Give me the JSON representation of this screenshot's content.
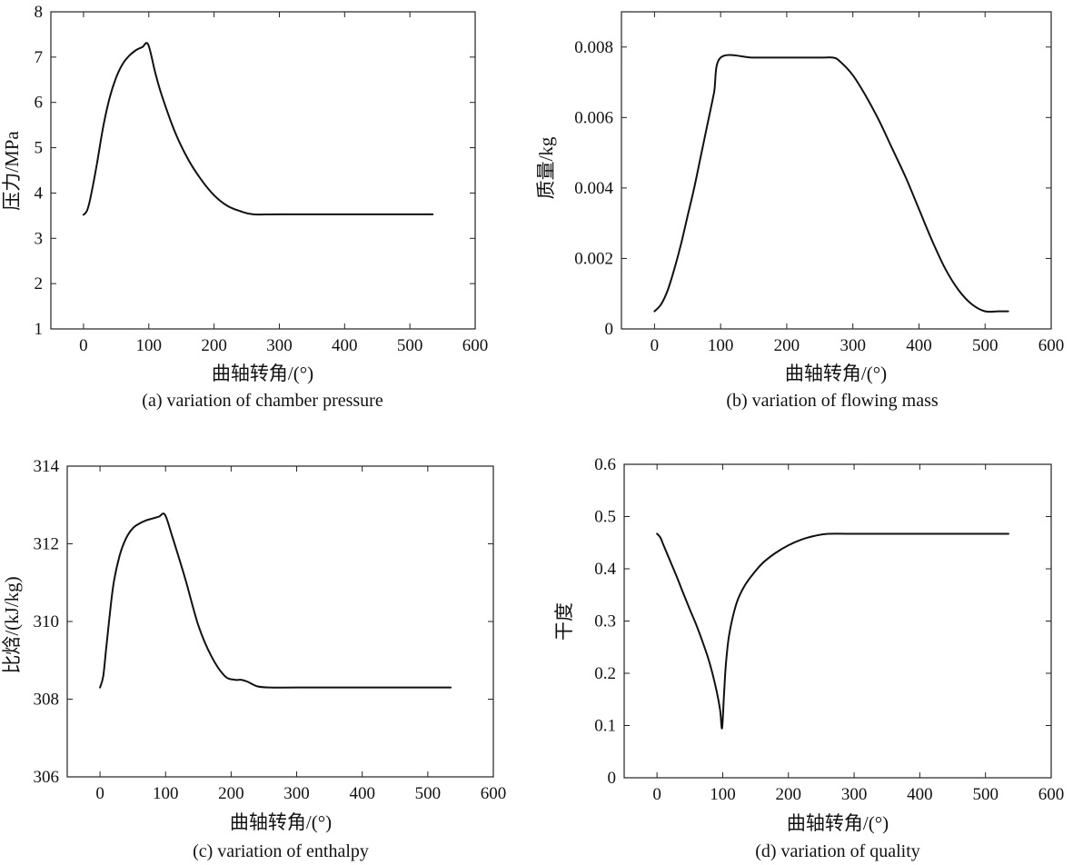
{
  "chart_data": [
    {
      "id": "a",
      "type": "line",
      "title": "",
      "caption": "(a) variation of chamber pressure",
      "xlabel": "曲轴转角/(°)",
      "ylabel": "压力/MPa",
      "xlim": [
        -50,
        600
      ],
      "ylim": [
        1,
        8
      ],
      "xticks": [
        "0",
        "100",
        "200",
        "300",
        "400",
        "500",
        "600"
      ],
      "xtick_values": [
        0,
        100,
        200,
        300,
        400,
        500,
        600
      ],
      "yticks": [
        "1",
        "2",
        "3",
        "4",
        "5",
        "6",
        "7",
        "8"
      ],
      "ytick_values": [
        1,
        2,
        3,
        4,
        5,
        6,
        7,
        8
      ],
      "series": [
        {
          "name": "pressure",
          "x": [
            0,
            5,
            10,
            20,
            30,
            40,
            50,
            60,
            70,
            80,
            90,
            99,
            110,
            120,
            140,
            160,
            180,
            200,
            220,
            240,
            260,
            300,
            400,
            500,
            535
          ],
          "y": [
            3.52,
            3.6,
            3.85,
            4.6,
            5.45,
            6.1,
            6.55,
            6.85,
            7.03,
            7.15,
            7.22,
            7.28,
            6.65,
            6.15,
            5.35,
            4.75,
            4.3,
            3.95,
            3.72,
            3.6,
            3.53,
            3.53,
            3.53,
            3.53,
            3.53
          ]
        }
      ]
    },
    {
      "id": "b",
      "type": "line",
      "title": "",
      "caption": "(b) variation of flowing mass",
      "xlabel": "曲轴转角/(°)",
      "ylabel": "质量/kg",
      "xlim": [
        -50,
        600
      ],
      "ylim": [
        0,
        0.009
      ],
      "xticks": [
        "0",
        "100",
        "200",
        "300",
        "400",
        "500",
        "600"
      ],
      "xtick_values": [
        0,
        100,
        200,
        300,
        400,
        500,
        600
      ],
      "yticks": [
        "0",
        "0.002",
        "0.004",
        "0.006",
        "0.008"
      ],
      "ytick_values": [
        0,
        0.002,
        0.004,
        0.006,
        0.008
      ],
      "series": [
        {
          "name": "mass",
          "x": [
            0,
            10,
            20,
            30,
            40,
            50,
            60,
            70,
            80,
            90,
            100,
            150,
            200,
            250,
            270,
            280,
            300,
            320,
            340,
            360,
            380,
            400,
            420,
            440,
            460,
            480,
            500,
            520,
            535
          ],
          "y": [
            0.0005,
            0.0007,
            0.0011,
            0.0017,
            0.0024,
            0.0032,
            0.004,
            0.0049,
            0.0058,
            0.0067,
            0.0077,
            0.0077,
            0.0077,
            0.0077,
            0.0077,
            0.0076,
            0.0072,
            0.0066,
            0.0059,
            0.0051,
            0.0043,
            0.0034,
            0.0025,
            0.0017,
            0.0011,
            0.0007,
            0.0005,
            0.0005,
            0.0005
          ]
        }
      ]
    },
    {
      "id": "c",
      "type": "line",
      "title": "",
      "caption": "(c) variation of enthalpy",
      "xlabel": "曲轴转角/(°)",
      "ylabel": "比焓/(kJ/kg)",
      "xlim": [
        -50,
        600
      ],
      "ylim": [
        306,
        314
      ],
      "xticks": [
        "0",
        "100",
        "200",
        "300",
        "400",
        "500",
        "600"
      ],
      "xtick_values": [
        0,
        100,
        200,
        300,
        400,
        500,
        600
      ],
      "yticks": [
        "306",
        "308",
        "310",
        "312",
        "314"
      ],
      "ytick_values": [
        306,
        308,
        310,
        312,
        314
      ],
      "series": [
        {
          "name": "enthalpy",
          "x": [
            0,
            5,
            10,
            20,
            30,
            40,
            50,
            60,
            70,
            80,
            90,
            99,
            110,
            130,
            150,
            170,
            190,
            205,
            215,
            225,
            240,
            260,
            300,
            400,
            535
          ],
          "y": [
            308.3,
            308.6,
            309.4,
            310.9,
            311.7,
            312.15,
            312.4,
            312.52,
            312.6,
            312.65,
            312.7,
            312.75,
            312.2,
            311.1,
            309.9,
            309.1,
            308.6,
            308.5,
            308.5,
            308.45,
            308.33,
            308.3,
            308.3,
            308.3,
            308.3
          ]
        }
      ]
    },
    {
      "id": "d",
      "type": "line",
      "title": "",
      "caption": "(d) variation of quality",
      "xlabel": "曲轴转角/(°)",
      "ylabel": "干度",
      "xlim": [
        -50,
        600
      ],
      "ylim": [
        0,
        0.6
      ],
      "xticks": [
        "0",
        "100",
        "200",
        "300",
        "400",
        "500",
        "600"
      ],
      "xtick_values": [
        0,
        100,
        200,
        300,
        400,
        500,
        600
      ],
      "yticks": [
        "0",
        "0.1",
        "0.2",
        "0.3",
        "0.4",
        "0.5",
        "0.6"
      ],
      "ytick_values": [
        0,
        0.1,
        0.2,
        0.3,
        0.4,
        0.5,
        0.6
      ],
      "series": [
        {
          "name": "quality",
          "x": [
            0,
            5,
            10,
            20,
            30,
            40,
            50,
            60,
            70,
            80,
            90,
            96,
            99,
            102,
            105,
            110,
            120,
            130,
            140,
            160,
            180,
            200,
            220,
            240,
            260,
            300,
            400,
            535
          ],
          "y": [
            0.467,
            0.46,
            0.445,
            0.415,
            0.385,
            0.353,
            0.322,
            0.292,
            0.258,
            0.22,
            0.17,
            0.13,
            0.095,
            0.16,
            0.22,
            0.275,
            0.33,
            0.36,
            0.38,
            0.41,
            0.43,
            0.445,
            0.456,
            0.463,
            0.467,
            0.467,
            0.467,
            0.467
          ]
        }
      ]
    }
  ]
}
